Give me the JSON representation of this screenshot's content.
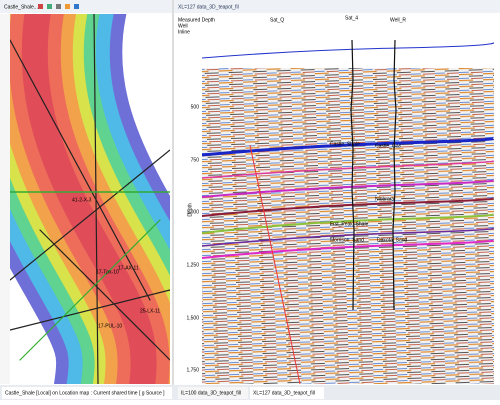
{
  "left_panel": {
    "title": "Castle_Shale...",
    "wells": [
      "41-2-X-3",
      "17-AX-11",
      "17-Tpx-10",
      "25-LX-11",
      "17-PUL-10"
    ]
  },
  "right_panel": {
    "title": "XL=127 data_3D_teapot_fil",
    "header_labels": [
      "Measured Depth",
      "Well",
      "Inline"
    ],
    "well_names": [
      "Sat_Q",
      "Sat_4",
      "Well_R"
    ],
    "horizons": [
      "Castle_Shale",
      "Castle_Gas",
      "Niobrara",
      "Frst_Peak_Shale",
      "Morrison_Sand",
      "Dakota_Sand"
    ],
    "depth_ticks": [
      "500",
      "750",
      "1,000",
      "1,250",
      "1,500",
      "1,750"
    ],
    "axis_label": "Depth"
  },
  "tabs": [
    "Castle_Shale [Local] on Location map : Current shared time [ g Source ]",
    "IL=100 data_3D_teapot_fill",
    "XL=127 data_3D_teapot_fill"
  ]
}
